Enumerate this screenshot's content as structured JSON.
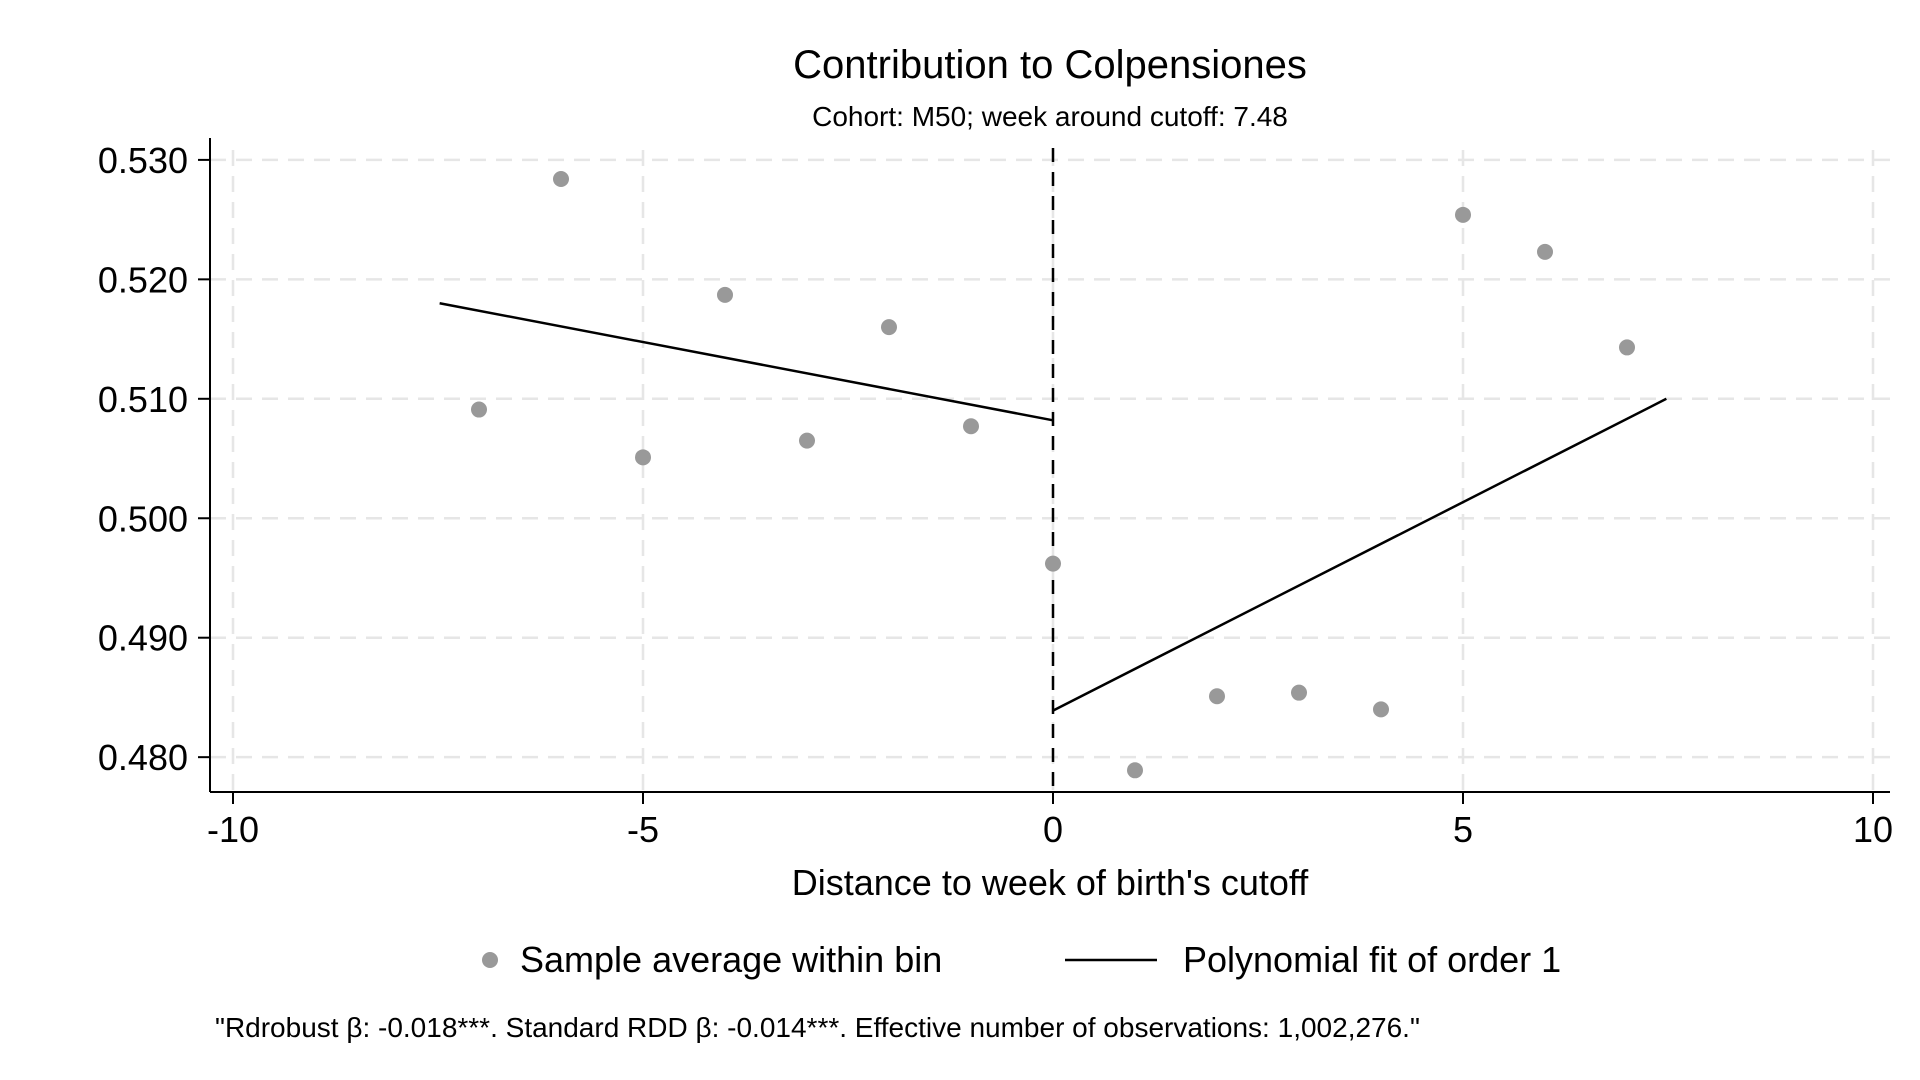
{
  "chart_data": {
    "type": "scatter",
    "title": "Contribution to Colpensiones",
    "subtitle": "Cohort: M50; week around cutoff: 7.48",
    "xlabel": "Distance to week of birth's cutoff",
    "ylabel": "",
    "xlim": [
      -10,
      10
    ],
    "ylim": [
      0.477,
      0.532
    ],
    "x_ticks": [
      -10,
      -5,
      0,
      5,
      10
    ],
    "x_tick_labels": [
      "-10",
      "-5",
      "0",
      "5",
      "10"
    ],
    "y_ticks": [
      0.48,
      0.49,
      0.5,
      0.51,
      0.52,
      0.53
    ],
    "y_tick_labels": [
      "0.480",
      "0.490",
      "0.500",
      "0.510",
      "0.520",
      "0.530"
    ],
    "grid": true,
    "cutoff_x": 0,
    "series": [
      {
        "name": "Sample average within bin",
        "kind": "scatter",
        "color": "#999999",
        "points": [
          {
            "x": -7,
            "y": 0.5091
          },
          {
            "x": -6,
            "y": 0.5284
          },
          {
            "x": -5,
            "y": 0.5051
          },
          {
            "x": -4,
            "y": 0.5187
          },
          {
            "x": -3,
            "y": 0.5065
          },
          {
            "x": -2,
            "y": 0.516
          },
          {
            "x": -1,
            "y": 0.5077
          },
          {
            "x": 0,
            "y": 0.4962
          },
          {
            "x": 1,
            "y": 0.4789
          },
          {
            "x": 2,
            "y": 0.4851
          },
          {
            "x": 3,
            "y": 0.4854
          },
          {
            "x": 4,
            "y": 0.484
          },
          {
            "x": 5,
            "y": 0.5254
          },
          {
            "x": 6,
            "y": 0.5223
          },
          {
            "x": 7,
            "y": 0.5143
          }
        ]
      },
      {
        "name": "Polynomial fit of order 1",
        "kind": "line",
        "color": "#000000",
        "segments": [
          [
            {
              "x": -7.48,
              "y": 0.518
            },
            {
              "x": 0,
              "y": 0.5082
            }
          ],
          [
            {
              "x": 0,
              "y": 0.4839
            },
            {
              "x": 7.48,
              "y": 0.51
            }
          ]
        ]
      }
    ],
    "legend_position": "bottom",
    "note": "\"Rdrobust β: -0.018***. Standard RDD β: -0.014***. Effective number of observations: 1,002,276.\""
  }
}
